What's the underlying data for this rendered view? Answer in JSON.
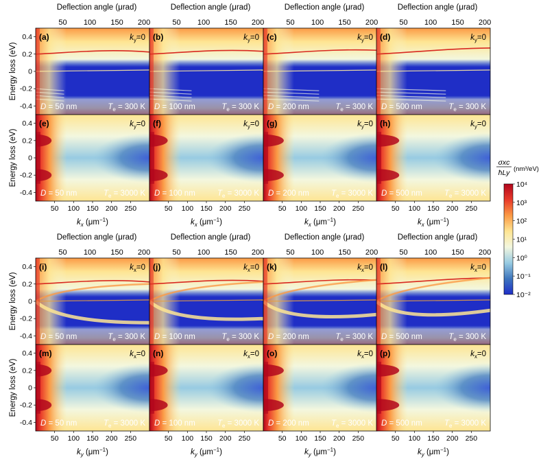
{
  "chart_data": {
    "type": "heatmap",
    "panel_groups": [
      {
        "top_axis_label": "Deflection angle (μrad)",
        "top_axis_ticks": [
          50,
          100,
          150,
          200
        ],
        "top_axis_range": [
          0,
          210
        ],
        "x_label": "k_x (μm⁻¹)",
        "x_label_var": "k",
        "x_label_sub": "x",
        "x_label_unit": " (μm",
        "x_ticks": [
          50,
          100,
          150,
          200,
          250
        ],
        "x_range": [
          0,
          300
        ],
        "y_label": "Energy loss (eV)",
        "y_ticks": [
          -0.4,
          -0.2,
          0,
          0.2,
          0.4
        ],
        "y_tick_labels": [
          "-0.4",
          "-0.2",
          "0",
          "0.2",
          "0.4"
        ],
        "y_range": [
          -0.5,
          0.5
        ],
        "rows": [
          {
            "temperature": "300 K",
            "panels": [
              {
                "letter": "(a)",
                "tag": "k_y=0",
                "D": "50 nm"
              },
              {
                "letter": "(b)",
                "tag": "k_y=0",
                "D": "100 nm"
              },
              {
                "letter": "(c)",
                "tag": "k_y=0",
                "D": "200 nm"
              },
              {
                "letter": "(d)",
                "tag": "k_y=0",
                "D": "500 nm"
              }
            ]
          },
          {
            "temperature": "3000 K",
            "panels": [
              {
                "letter": "(e)",
                "tag": "k_y=0",
                "D": "50 nm"
              },
              {
                "letter": "(f)",
                "tag": "k_y=0",
                "D": "100 nm"
              },
              {
                "letter": "(g)",
                "tag": "k_y=0",
                "D": "200 nm"
              },
              {
                "letter": "(h)",
                "tag": "k_y=0",
                "D": "500 nm"
              }
            ]
          }
        ]
      },
      {
        "top_axis_label": "Deflection angle (μrad)",
        "top_axis_ticks": [
          50,
          100,
          150,
          200
        ],
        "top_axis_range": [
          0,
          210
        ],
        "x_label": "k_y (μm⁻¹)",
        "x_label_var": "k",
        "x_label_sub": "y",
        "x_label_unit": " (μm",
        "x_ticks": [
          50,
          100,
          150,
          200,
          250
        ],
        "x_range": [
          0,
          300
        ],
        "y_label": "Energy loss (eV)",
        "y_ticks": [
          -0.4,
          -0.2,
          0,
          0.2,
          0.4
        ],
        "y_tick_labels": [
          "-0.4",
          "-0.2",
          "0",
          "0.2",
          "0.4"
        ],
        "y_range": [
          -0.5,
          0.5
        ],
        "rows": [
          {
            "temperature": "300 K",
            "panels": [
              {
                "letter": "(i)",
                "tag": "k_x=0",
                "D": "50 nm"
              },
              {
                "letter": "(j)",
                "tag": "k_x=0",
                "D": "100 nm"
              },
              {
                "letter": "(k)",
                "tag": "k_x=0",
                "D": "200 nm"
              },
              {
                "letter": "(l)",
                "tag": "k_x=0",
                "D": "500 nm"
              }
            ]
          },
          {
            "temperature": "3000 K",
            "panels": [
              {
                "letter": "(m)",
                "tag": "k_x=0",
                "D": "50 nm"
              },
              {
                "letter": "(n)",
                "tag": "k_x=0",
                "D": "100 nm"
              },
              {
                "letter": "(o)",
                "tag": "k_x=0",
                "D": "200 nm"
              },
              {
                "letter": "(p)",
                "tag": "k_x=0",
                "D": "500 nm"
              }
            ]
          }
        ]
      }
    ],
    "colorbar": {
      "label": "σ_xc / ħL_y (nm³/eV)",
      "label_num": "σxc",
      "label_den": "ħLy",
      "label_units": "(nm³/eV)",
      "scale": "log",
      "range": [
        0.01,
        10000
      ],
      "ticks": [
        "10⁴",
        "10³",
        "10²",
        "10¹",
        "10⁰",
        "10⁻¹",
        "10⁻²"
      ],
      "colors": [
        "#b2071d",
        "#e83a2a",
        "#fb9a45",
        "#fee593",
        "#f3f7df",
        "#98cbe2",
        "#3e76bd",
        "#1e2ec8"
      ]
    }
  }
}
